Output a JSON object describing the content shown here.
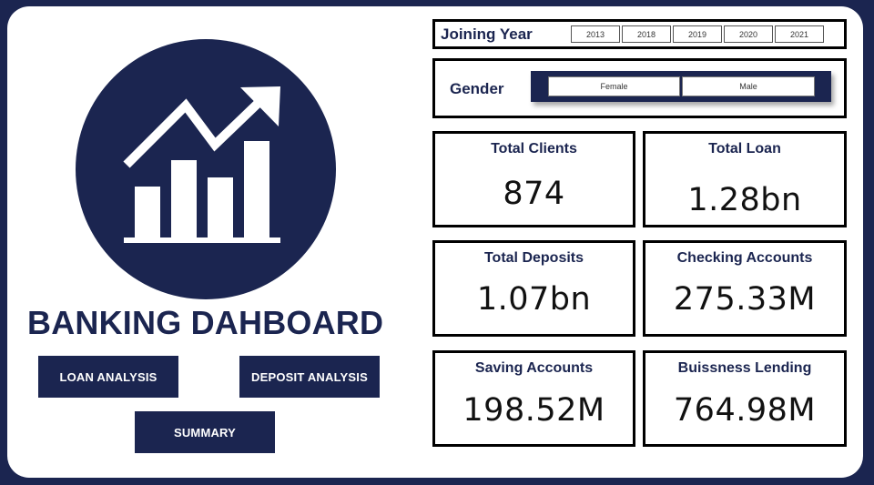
{
  "brand": {
    "title": "BANKING DAHBOARD",
    "primary_color": "#1b2550",
    "logo_icon": "bar-chart-trend-up-icon"
  },
  "nav": {
    "loan_analysis": "LOAN ANALYSIS",
    "deposit_analysis": "DEPOSIT ANALYSIS",
    "summary": "SUMMARY"
  },
  "filters": {
    "joining_year": {
      "label": "Joining Year",
      "options": [
        "2013",
        "2018",
        "2019",
        "2020",
        "2021"
      ]
    },
    "gender": {
      "label": "Gender",
      "options": [
        "Female",
        "Male"
      ]
    }
  },
  "kpis": {
    "total_clients": {
      "label": "Total Clients",
      "value": "874"
    },
    "total_loan": {
      "label": "Total Loan",
      "value": "1.28bn"
    },
    "total_deposits": {
      "label": "Total Deposits",
      "value": "1.07bn"
    },
    "checking_accounts": {
      "label": "Checking Accounts",
      "value": "275.33M"
    },
    "saving_accounts": {
      "label": "Saving Accounts",
      "value": "198.52M"
    },
    "business_lending": {
      "label": "Buissness Lending",
      "value": "764.98M"
    }
  }
}
